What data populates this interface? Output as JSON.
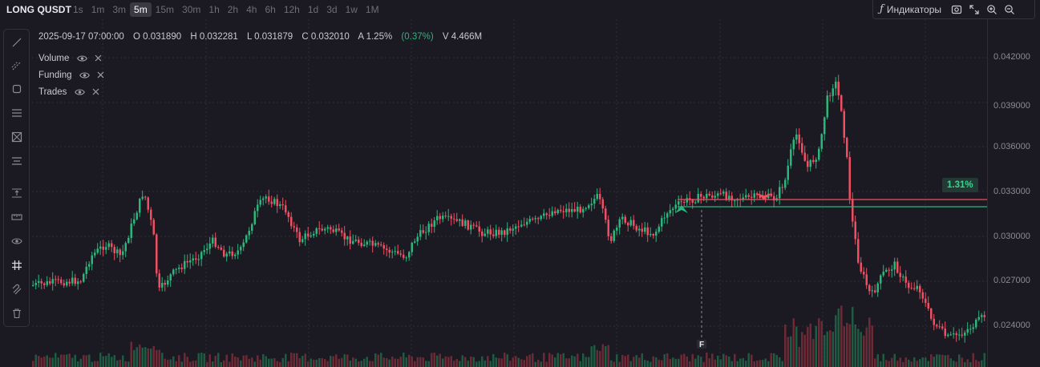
{
  "toolbar": {
    "symbol": "LONG QUSDT",
    "timeframes": [
      "1s",
      "1m",
      "3m",
      "5m",
      "15m",
      "30m",
      "1h",
      "2h",
      "4h",
      "6h",
      "12h",
      "1d",
      "3d",
      "1w",
      "1M"
    ],
    "active_timeframe": "5m",
    "indicators_label": "Индикаторы",
    "indicators_icon": "function-icon"
  },
  "ohlc": {
    "datetime": "2025-09-17 07:00:00",
    "open": "O 0.031890",
    "high": "H 0.032281",
    "low": "L 0.031879",
    "close": "C 0.032010",
    "amplitude": "A 1.25%",
    "change": "(0.37%)",
    "volume": "V 4.466M"
  },
  "legend": [
    {
      "label": "Volume"
    },
    {
      "label": "Funding"
    },
    {
      "label": "Trades"
    }
  ],
  "price_axis": {
    "ticks": [
      "0.042000",
      "0.039000",
      "0.036000",
      "0.033000",
      "0.030000",
      "0.027000",
      "0.024000"
    ]
  },
  "position": {
    "pct_label": "1.31%",
    "marker_letter": "F"
  },
  "colors": {
    "up": "#2bb67c",
    "down": "#ef4f62",
    "background": "#1b1a22",
    "grid": "#2e2d38"
  }
}
